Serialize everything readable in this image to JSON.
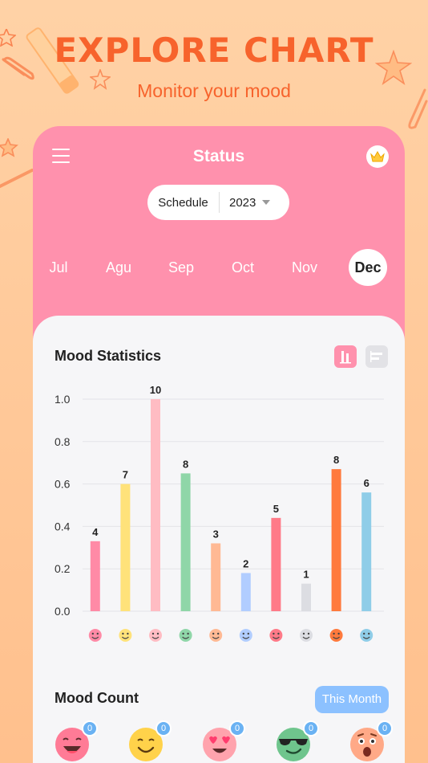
{
  "hero": {
    "title": "EXPLORE CHART",
    "subtitle": "Monitor your mood"
  },
  "header": {
    "title": "Status",
    "menu_icon": "hamburger-icon",
    "premium_icon": "crown-icon"
  },
  "selector": {
    "label": "Schedule",
    "year": "2023"
  },
  "months": [
    {
      "label": "Jul",
      "active": false
    },
    {
      "label": "Agu",
      "active": false
    },
    {
      "label": "Sep",
      "active": false
    },
    {
      "label": "Oct",
      "active": false
    },
    {
      "label": "Nov",
      "active": false
    },
    {
      "label": "Dec",
      "active": true
    }
  ],
  "statistics": {
    "title": "Mood Statistics",
    "views": [
      "bar-chart-icon",
      "horizontal-bar-icon"
    ]
  },
  "chart_data": {
    "type": "bar",
    "categories": [
      "laughing",
      "smiling",
      "heart-eyes",
      "sunglasses",
      "surprised",
      "sad-tear",
      "annoyed",
      "neutral",
      "angry",
      "crying"
    ],
    "values": [
      0.33,
      0.6,
      1.0,
      0.65,
      0.32,
      0.18,
      0.44,
      0.13,
      0.67,
      0.56
    ],
    "data_labels": [
      "4",
      "7",
      "10",
      "8",
      "3",
      "2",
      "5",
      "1",
      "8",
      "6"
    ],
    "y_ticks": [
      "0.0",
      "0.2",
      "0.4",
      "0.6",
      "0.8",
      "1.0"
    ],
    "ylim": [
      0,
      1.0
    ],
    "grid": true,
    "colors": [
      "#ff8aa6",
      "#ffe27a",
      "#ffbcc3",
      "#8fd6a8",
      "#ffb994",
      "#b1cdff",
      "#ff7a88",
      "#dcdde2",
      "#ff7a3d",
      "#8fcde8"
    ]
  },
  "count": {
    "title": "Mood Count",
    "filter_label": "This Month",
    "items": [
      {
        "icon": "laughing-face-icon",
        "count": "0"
      },
      {
        "icon": "smiling-face-icon",
        "count": "0"
      },
      {
        "icon": "heart-eyes-face-icon",
        "count": "0"
      },
      {
        "icon": "sunglasses-face-icon",
        "count": "0"
      },
      {
        "icon": "surprised-face-icon",
        "count": "0"
      }
    ]
  },
  "colors": {
    "accent": "#f7632c",
    "card": "#ff91ad",
    "panel": "#f6f6f8",
    "button": "#8cc1ff"
  }
}
